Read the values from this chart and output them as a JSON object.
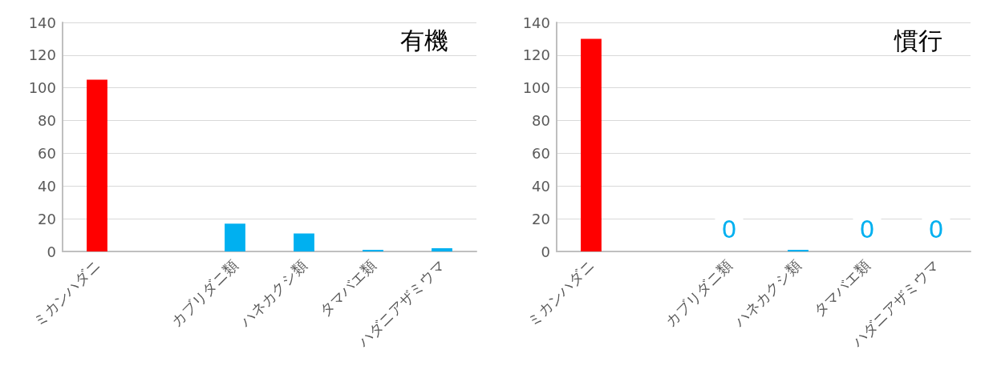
{
  "chart_data": [
    {
      "type": "bar",
      "title": "有機",
      "categories": [
        "ミカンハダニ",
        null,
        "カブリダニ類",
        "ハネカクシ類",
        "タマバエ類",
        "ハダニアザミウマ"
      ],
      "values": [
        105,
        null,
        17,
        11,
        1,
        2
      ],
      "colors": [
        "#ff0000",
        "#00b0f0",
        "#00b0f0",
        "#00b0f0",
        "#00b0f0",
        "#00b0f0"
      ],
      "ylim": [
        0,
        140
      ],
      "yticks": [
        0,
        20,
        40,
        60,
        80,
        100,
        120,
        140
      ],
      "grid": "y"
    },
    {
      "type": "bar",
      "title": "慣行",
      "categories": [
        "ミカンハダニ",
        null,
        "カブリダニ類",
        "ハネカクシ類",
        "タマバエ類",
        "ハダニアザミウマ"
      ],
      "values": [
        130,
        null,
        0,
        1,
        0,
        0
      ],
      "colors": [
        "#ff0000",
        "#00b0f0",
        "#00b0f0",
        "#00b0f0",
        "#00b0f0",
        "#00b0f0"
      ],
      "value_labels": [
        null,
        null,
        "0",
        null,
        "0",
        "0"
      ],
      "ylim": [
        0,
        140
      ],
      "yticks": [
        0,
        20,
        40,
        60,
        80,
        100,
        120,
        140
      ],
      "grid": "y"
    }
  ]
}
